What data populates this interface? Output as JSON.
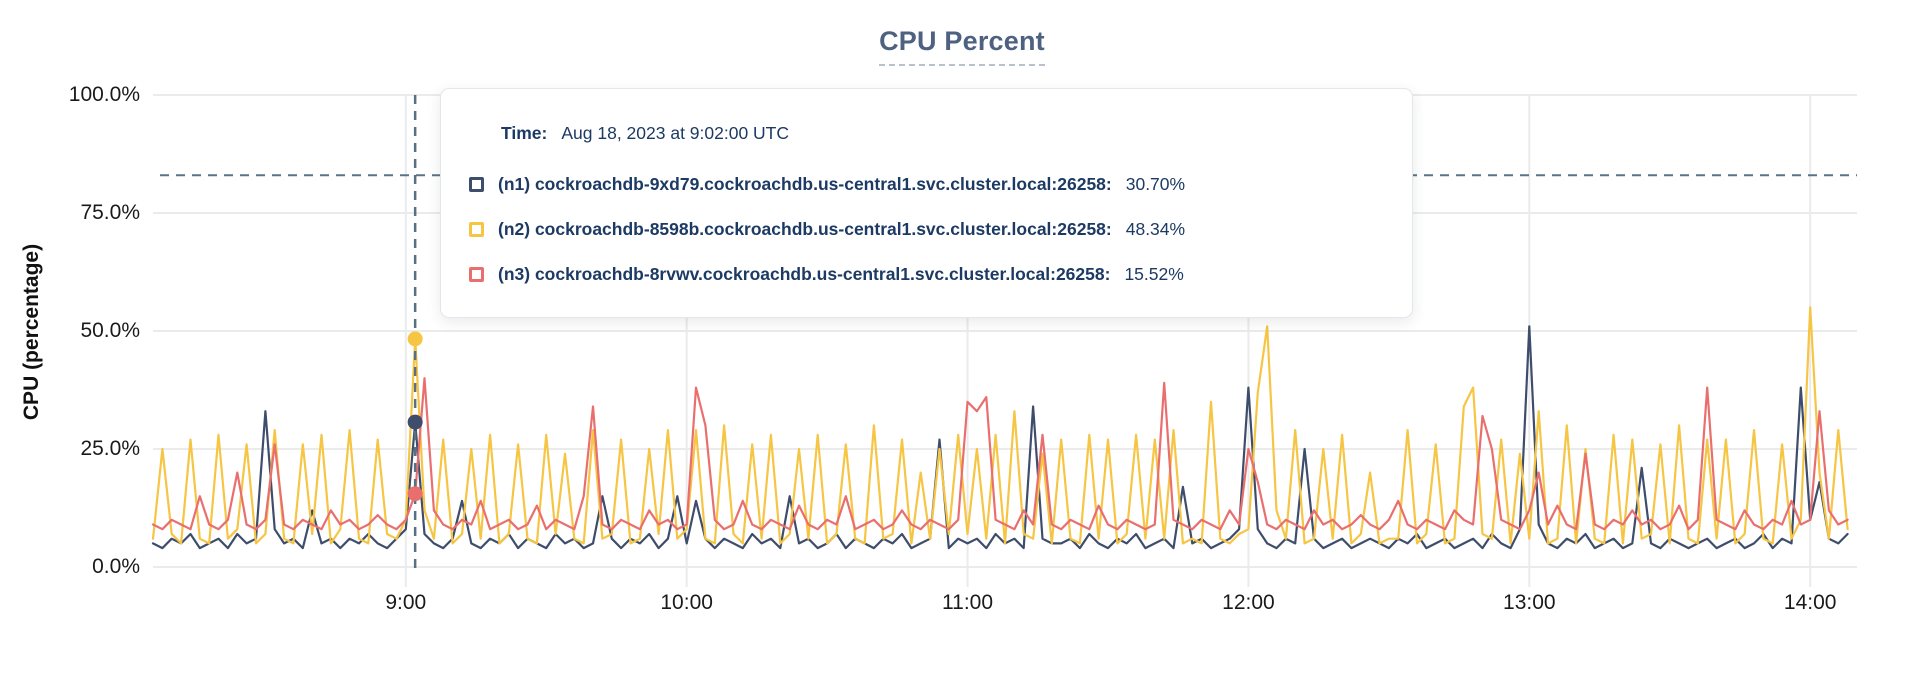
{
  "title": "CPU Percent",
  "colors": {
    "n1_navy": "#3e4d6b",
    "n2_yellow": "#f6c543",
    "n3_red": "#e96f6f",
    "title_text": "#4e6180",
    "tooltip_text": "#1c3a63",
    "threshold_line": "#5b7285",
    "hover_line": "#587083",
    "gridline": "#ebebeb"
  },
  "y_axis": {
    "label": "CPU (percentage)",
    "ticks": [
      {
        "label": "0.0%",
        "value": 0
      },
      {
        "label": "25.0%",
        "value": 25
      },
      {
        "label": "50.0%",
        "value": 50
      },
      {
        "label": "75.0%",
        "value": 75
      },
      {
        "label": "100.0%",
        "value": 100
      }
    ]
  },
  "x_axis": {
    "ticks": [
      {
        "label": "9:00",
        "minutes": 60
      },
      {
        "label": "10:00",
        "minutes": 120
      },
      {
        "label": "11:00",
        "minutes": 180
      },
      {
        "label": "12:00",
        "minutes": 240
      },
      {
        "label": "13:00",
        "minutes": 300
      },
      {
        "label": "14:00",
        "minutes": 360
      }
    ]
  },
  "threshold": {
    "value_pct": 83
  },
  "hover": {
    "time_prefix": "Time:",
    "time_label": "Aug 18, 2023 at 9:02:00 UTC",
    "time_minutes": 62,
    "point_values_pct": [
      30.7,
      48.34,
      15.52
    ]
  },
  "tooltip": {
    "rows": [
      {
        "series": "n1",
        "color": "#3e4d6b",
        "label": "(n1) cockroachdb-9xd79.cockroachdb.us-central1.svc.cluster.local:26258:",
        "value": "30.70%"
      },
      {
        "series": "n2",
        "color": "#f6c543",
        "label": "(n2) cockroachdb-8598b.cockroachdb.us-central1.svc.cluster.local:26258:",
        "value": "48.34%"
      },
      {
        "series": "n3",
        "color": "#e96f6f",
        "label": "(n3) cockroachdb-8rvwv.cockroachdb.us-central1.svc.cluster.local:26258:",
        "value": "15.52%"
      }
    ]
  },
  "chart_data": {
    "type": "line",
    "title": "CPU Percent",
    "ylabel": "CPU (percentage)",
    "ylim": [
      0,
      100
    ],
    "y_max_pct": 100,
    "grid": true,
    "x_unit": "minutes after 08:00 UTC on Aug 18, 2023",
    "x_domain_minutes": [
      6,
      370
    ],
    "x_start_minutes": 6,
    "x_step_minutes": 2,
    "series": [
      {
        "name": "(n1) cockroachdb-9xd79.cockroachdb.us-central1.svc.cluster.local:26258",
        "color": "#3e4d6b",
        "values_pct": [
          5,
          4,
          6,
          5,
          7,
          4,
          5,
          6,
          4,
          7,
          5,
          6,
          33,
          8,
          5,
          6,
          4,
          12,
          5,
          6,
          4,
          6,
          5,
          7,
          5,
          4,
          6,
          8,
          30.7,
          7,
          5,
          4,
          6,
          14,
          5,
          4,
          6,
          5,
          7,
          4,
          6,
          5,
          4,
          7,
          5,
          6,
          4,
          5,
          15,
          6,
          4,
          6,
          5,
          7,
          4,
          6,
          15,
          5,
          14,
          6,
          4,
          6,
          5,
          4,
          7,
          5,
          6,
          4,
          15,
          5,
          6,
          4,
          5,
          7,
          4,
          6,
          5,
          4,
          6,
          5,
          7,
          4,
          5,
          6,
          27,
          4,
          6,
          5,
          6,
          4,
          7,
          5,
          6,
          4,
          34,
          6,
          5,
          5,
          6,
          4,
          7,
          5,
          4,
          6,
          5,
          7,
          4,
          5,
          6,
          4,
          17,
          5,
          6,
          4,
          5,
          6,
          8,
          38,
          8,
          5,
          4,
          6,
          5,
          25,
          6,
          4,
          5,
          6,
          4,
          5,
          6,
          5,
          4,
          6,
          5,
          7,
          4,
          5,
          6,
          4,
          5,
          6,
          4,
          7,
          5,
          4,
          8,
          51,
          9,
          5,
          4,
          6,
          5,
          7,
          4,
          5,
          6,
          4,
          5,
          21,
          5,
          4,
          6,
          5,
          4,
          5,
          6,
          4,
          5,
          6,
          4,
          5,
          7,
          4,
          6,
          5,
          38,
          10,
          18,
          6,
          5,
          7
        ]
      },
      {
        "name": "(n2) cockroachdb-8598b.cockroachdb.us-central1.svc.cluster.local:26258",
        "color": "#f6c543",
        "values_pct": [
          6,
          25,
          7,
          5,
          27,
          6,
          5,
          28,
          6,
          8,
          26,
          5,
          7,
          29,
          6,
          5,
          26,
          7,
          28,
          5,
          8,
          29,
          6,
          5,
          27,
          7,
          6,
          10,
          48.34,
          12,
          6,
          27,
          5,
          7,
          25,
          6,
          28,
          5,
          7,
          26,
          6,
          5,
          28,
          7,
          24,
          6,
          5,
          29,
          6,
          7,
          27,
          5,
          6,
          25,
          7,
          29,
          6,
          8,
          29,
          6,
          5,
          30,
          7,
          5,
          26,
          6,
          28,
          5,
          7,
          25,
          6,
          28,
          5,
          7,
          26,
          6,
          5,
          30,
          6,
          7,
          27,
          5,
          20,
          6,
          25,
          7,
          28,
          7,
          25,
          6,
          28,
          5,
          33,
          7,
          6,
          24,
          5,
          27,
          6,
          5,
          28,
          6,
          27,
          5,
          7,
          28,
          6,
          27,
          6,
          29,
          5,
          6,
          5,
          35,
          6,
          5,
          7,
          8,
          37,
          51,
          12,
          6,
          29,
          5,
          6,
          25,
          6,
          28,
          5,
          7,
          20,
          5,
          6,
          6,
          29,
          5,
          7,
          26,
          5,
          6,
          34,
          38,
          7,
          6,
          27,
          5,
          24,
          6,
          33,
          5,
          6,
          30,
          5,
          25,
          6,
          5,
          28,
          5,
          27,
          6,
          7,
          26,
          5,
          30,
          6,
          5,
          27,
          6,
          27,
          5,
          7,
          29,
          6,
          5,
          26,
          6,
          10,
          55,
          20,
          6,
          29,
          8
        ]
      },
      {
        "name": "(n3) cockroachdb-8rvwv.cockroachdb.us-central1.svc.cluster.local:26258",
        "color": "#e96f6f",
        "values_pct": [
          9,
          8,
          10,
          9,
          8,
          15,
          9,
          8,
          10,
          20,
          9,
          8,
          10,
          26,
          9,
          8,
          10,
          9,
          8,
          12,
          9,
          10,
          8,
          9,
          11,
          9,
          8,
          10,
          15.52,
          40,
          12,
          9,
          8,
          10,
          9,
          14,
          8,
          9,
          10,
          8,
          9,
          13,
          8,
          10,
          9,
          8,
          15,
          34,
          9,
          8,
          10,
          9,
          8,
          12,
          9,
          10,
          8,
          9,
          38,
          30,
          10,
          8,
          9,
          14,
          9,
          8,
          10,
          9,
          8,
          13,
          9,
          8,
          10,
          9,
          15,
          8,
          9,
          10,
          8,
          9,
          12,
          9,
          8,
          10,
          9,
          8,
          10,
          35,
          33,
          36,
          10,
          9,
          8,
          12,
          9,
          28,
          9,
          8,
          10,
          9,
          8,
          13,
          9,
          8,
          10,
          9,
          8,
          9,
          39,
          10,
          9,
          8,
          10,
          9,
          8,
          12,
          9,
          25,
          18,
          9,
          8,
          10,
          9,
          8,
          12,
          9,
          10,
          8,
          9,
          11,
          9,
          8,
          10,
          14,
          9,
          8,
          10,
          9,
          8,
          12,
          10,
          9,
          32,
          25,
          10,
          9,
          8,
          12,
          20,
          9,
          13,
          9,
          8,
          24,
          9,
          8,
          10,
          9,
          12,
          9,
          10,
          8,
          9,
          13,
          8,
          10,
          38,
          10,
          9,
          8,
          12,
          9,
          8,
          10,
          9,
          14,
          9,
          10,
          33,
          12,
          9,
          10
        ]
      }
    ]
  }
}
